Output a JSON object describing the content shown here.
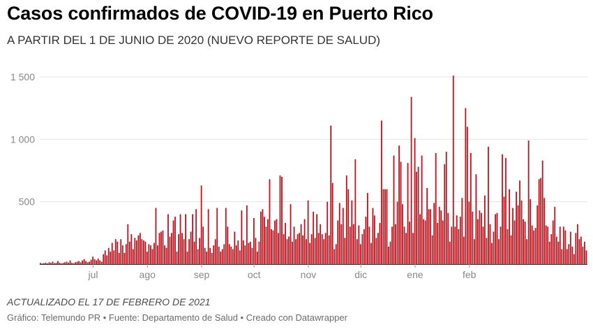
{
  "header": {
    "title": "Casos confirmados de COVID-19 en Puerto Rico",
    "subtitle": "A PARTIR DEL 1 DE JUNIO DE 2020 (NUEVO REPORTE DE SALUD)"
  },
  "footer": {
    "updated": "ACTUALIZADO EL 17 DE FEBRERO DE 2021",
    "credits": "Gráfico: Telemundo PR • Fuente: Departamento de Salud • Creado con Datawrapper"
  },
  "colors": {
    "bar": "#c0121c",
    "grid": "#e4e4e4",
    "baseline": "#333333",
    "tick_text": "#888888"
  },
  "chart_data": {
    "type": "bar",
    "title": "Casos confirmados de COVID-19 en Puerto Rico",
    "subtitle": "A PARTIR DEL 1 DE JUNIO DE 2020 (NUEVO REPORTE DE SALUD)",
    "xlabel": "",
    "ylabel": "",
    "x_start": "2020-06-01",
    "ylim": [
      0,
      1500
    ],
    "yticks": [
      {
        "value": 500,
        "label": "500"
      },
      {
        "value": 1000,
        "label": "1 000"
      },
      {
        "value": 1500,
        "label": "1 500"
      }
    ],
    "xticks": [
      {
        "label": "jul",
        "date": "2020-07-01"
      },
      {
        "label": "ago",
        "date": "2020-08-01"
      },
      {
        "label": "sep",
        "date": "2020-09-01"
      },
      {
        "label": "oct",
        "date": "2020-10-01"
      },
      {
        "label": "nov",
        "date": "2020-11-01"
      },
      {
        "label": "dic",
        "date": "2020-12-01"
      },
      {
        "label": "ene",
        "date": "2021-01-01"
      },
      {
        "label": "feb",
        "date": "2021-02-01"
      }
    ],
    "grid": true,
    "legend": "none",
    "values": [
      10,
      5,
      8,
      12,
      6,
      15,
      10,
      20,
      8,
      10,
      25,
      12,
      5,
      10,
      15,
      20,
      12,
      30,
      10,
      8,
      15,
      20,
      25,
      15,
      30,
      40,
      25,
      15,
      20,
      35,
      60,
      40,
      30,
      45,
      30,
      20,
      80,
      110,
      70,
      130,
      100,
      170,
      110,
      200,
      180,
      90,
      200,
      150,
      90,
      160,
      320,
      180,
      240,
      120,
      210,
      190,
      230,
      250,
      200,
      190,
      180,
      100,
      160,
      150,
      120,
      170,
      450,
      150,
      250,
      260,
      270,
      150,
      130,
      400,
      220,
      250,
      350,
      380,
      100,
      240,
      400,
      250,
      200,
      400,
      100,
      200,
      260,
      400,
      180,
      440,
      120,
      210,
      630,
      300,
      130,
      100,
      440,
      130,
      90,
      150,
      200,
      450,
      140,
      100,
      120,
      160,
      450,
      300,
      160,
      140,
      120,
      260,
      150,
      190,
      110,
      430,
      190,
      150,
      470,
      170,
      180,
      130,
      370,
      210,
      100,
      180,
      420,
      440,
      380,
      300,
      360,
      680,
      280,
      270,
      350,
      360,
      250,
      710,
      700,
      240,
      330,
      200,
      220,
      480,
      180,
      300,
      200,
      240,
      250,
      320,
      230,
      360,
      200,
      510,
      170,
      240,
      420,
      210,
      400,
      250,
      320,
      240,
      200,
      250,
      500,
      230,
      1110,
      650,
      120,
      160,
      350,
      490,
      320,
      450,
      210,
      710,
      600,
      300,
      510,
      320,
      840,
      200,
      310,
      160,
      240,
      280,
      380,
      570,
      300,
      170,
      450,
      390,
      210,
      250,
      330,
      1150,
      600,
      600,
      600,
      140,
      180,
      300,
      870,
      320,
      500,
      950,
      820,
      480,
      300,
      250,
      810,
      340,
      1340,
      250,
      1010,
      740,
      780,
      400,
      870,
      360,
      350,
      610,
      440,
      440,
      230,
      490,
      890,
      330,
      460,
      430,
      350,
      800,
      900,
      410,
      180,
      300,
      1510,
      300,
      390,
      280,
      380,
      530,
      220,
      1250,
      1100,
      500,
      890,
      420,
      200,
      720,
      360,
      430,
      410,
      300,
      550,
      210,
      940,
      320,
      170,
      260,
      400,
      410,
      200,
      300,
      880,
      540,
      850,
      280,
      600,
      230,
      450,
      350,
      580,
      470,
      670,
      510,
      360,
      340,
      200,
      990,
      520,
      310,
      270,
      290,
      470,
      680,
      690,
      830,
      530,
      310,
      300,
      180,
      240,
      350,
      460,
      220,
      180,
      300,
      120,
      300,
      270,
      120,
      160,
      260,
      140,
      80,
      250,
      320,
      200,
      220,
      140,
      180,
      110
    ]
  }
}
